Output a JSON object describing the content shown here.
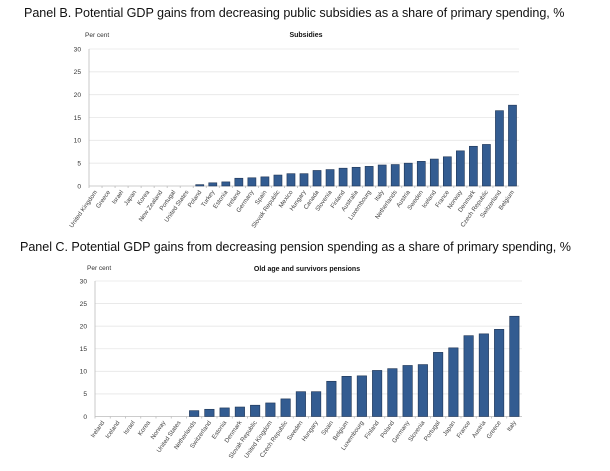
{
  "chart_data": [
    {
      "type": "bar",
      "panel_title": "Panel B. Potential GDP gains from decreasing public subsidies as a share of primary spending, %",
      "title": "Subsidies",
      "ylabel": "Per cent",
      "xlabel": "",
      "ylim": [
        0,
        30
      ],
      "yticks": [
        0,
        5,
        10,
        15,
        20,
        25,
        30
      ],
      "grid": true,
      "color": "#335c91",
      "categories": [
        "United Kingdom",
        "Greece",
        "Israel",
        "Japan",
        "Korea",
        "New Zealand",
        "Portugal",
        "United States",
        "Poland",
        "Turkey",
        "Estonia",
        "Ireland",
        "Germany",
        "Spain",
        "Slovak Republic",
        "Mexico",
        "Hungary",
        "Canada",
        "Slovenia",
        "Finland",
        "Australia",
        "Luxembourg",
        "Italy",
        "Netherlands",
        "Austria",
        "Sweden",
        "Iceland",
        "France",
        "Norway",
        "Denmark",
        "Czech Republic",
        "Switzerland",
        "Belgium"
      ],
      "values": [
        0,
        0,
        0,
        0,
        0,
        0,
        0,
        0,
        0.3,
        0.7,
        0.9,
        1.7,
        1.8,
        2.0,
        2.4,
        2.7,
        2.7,
        3.4,
        3.6,
        3.9,
        4.1,
        4.3,
        4.6,
        4.7,
        5.0,
        5.4,
        5.9,
        6.4,
        7.7,
        8.7,
        9.1,
        16.5,
        17.7
      ]
    },
    {
      "type": "bar",
      "panel_title": "Panel C. Potential GDP gains from decreasing pension spending as a share of primary spending, %",
      "title": "Old age and survivors pensions",
      "ylabel": "Per cent",
      "xlabel": "",
      "ylim": [
        0,
        30
      ],
      "yticks": [
        0,
        5,
        10,
        15,
        20,
        25,
        30
      ],
      "grid": true,
      "color": "#335c91",
      "categories": [
        "Ireland",
        "Iceland",
        "Israel",
        "Korea",
        "Norway",
        "United States",
        "Netherlands",
        "Switzerland",
        "Estonia",
        "Denmark",
        "Slovak Republic",
        "United Kingdom",
        "Czech Republic",
        "Sweden",
        "Hungary",
        "Spain",
        "Belgium",
        "Luxembourg",
        "Finland",
        "Poland",
        "Germany",
        "Slovenia",
        "Portugal",
        "Japan",
        "France",
        "Austria",
        "Greece",
        "Italy"
      ],
      "values": [
        0,
        0,
        0,
        0,
        0,
        0,
        1.3,
        1.6,
        1.9,
        2.1,
        2.5,
        3.0,
        3.9,
        5.5,
        5.5,
        7.8,
        8.9,
        9.0,
        10.2,
        10.6,
        11.3,
        11.5,
        14.2,
        15.2,
        17.9,
        18.3,
        19.3,
        22.2
      ]
    }
  ]
}
